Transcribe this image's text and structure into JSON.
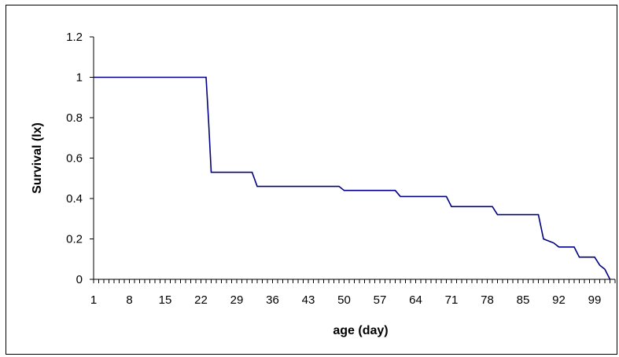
{
  "chart_data": {
    "type": "line",
    "title": "",
    "xlabel": "age (day)",
    "ylabel": "Survival (lx)",
    "x_tick_labels": [
      "1",
      "8",
      "15",
      "22",
      "29",
      "36",
      "43",
      "50",
      "57",
      "64",
      "71",
      "78",
      "85",
      "92",
      "99"
    ],
    "y_tick_labels": [
      "0",
      "0.2",
      "0.4",
      "0.6",
      "0.8",
      "1",
      "1.2"
    ],
    "ylim": [
      0,
      1.2
    ],
    "xlim": [
      1,
      103
    ],
    "grid": false,
    "legend": "none",
    "line_color": "#000080",
    "series": [
      {
        "x": [
          1,
          23,
          23.5,
          24,
          32,
          33,
          49,
          50,
          60,
          61,
          70,
          71,
          79,
          80,
          88,
          89,
          90,
          91,
          92,
          93,
          95,
          96,
          99,
          100,
          101,
          102
        ],
        "y": [
          1,
          1,
          0.78,
          0.53,
          0.53,
          0.46,
          0.46,
          0.44,
          0.44,
          0.41,
          0.41,
          0.36,
          0.36,
          0.32,
          0.32,
          0.2,
          0.19,
          0.18,
          0.16,
          0.16,
          0.16,
          0.11,
          0.11,
          0.07,
          0.05,
          0
        ]
      }
    ]
  }
}
